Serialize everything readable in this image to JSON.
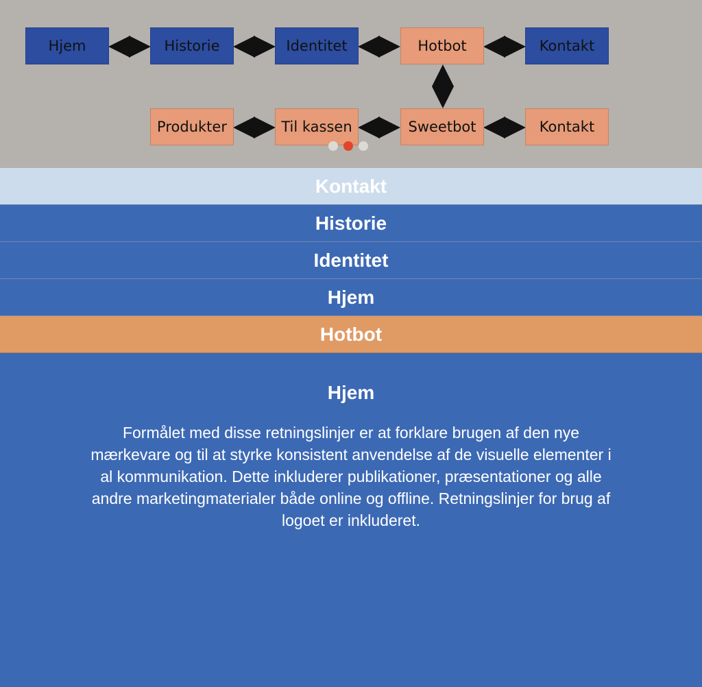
{
  "flowchart": {
    "row1": [
      "Hjem",
      "Historie",
      "Identitet",
      "Hotbot",
      "Kontakt"
    ],
    "row2": [
      "Produkter",
      "Til kassen",
      "Sweetbot",
      "Kontakt"
    ],
    "colors": {
      "blue": "#2c4da0",
      "orange": "#e79b78"
    }
  },
  "carousel": {
    "slide_count": 3,
    "active_index": 1
  },
  "menu": {
    "items": [
      {
        "label": "Kontakt",
        "state": "light"
      },
      {
        "label": "Historie",
        "state": "blue"
      },
      {
        "label": "Identitet",
        "state": "blue"
      },
      {
        "label": "Hjem",
        "state": "blue"
      },
      {
        "label": "Hotbot",
        "state": "orange"
      }
    ]
  },
  "content": {
    "title": "Hjem",
    "body": "Formålet med disse retningslinjer er at forklare brugen af den nye mærkevare og til at styrke konsistent anvendelse af de visuelle elementer i al kommunikation. Dette inkluderer publikationer, præsentationer og alle andre marketingmaterialer både online og offline. Retningslinjer for brug af logoet er inkluderet."
  }
}
